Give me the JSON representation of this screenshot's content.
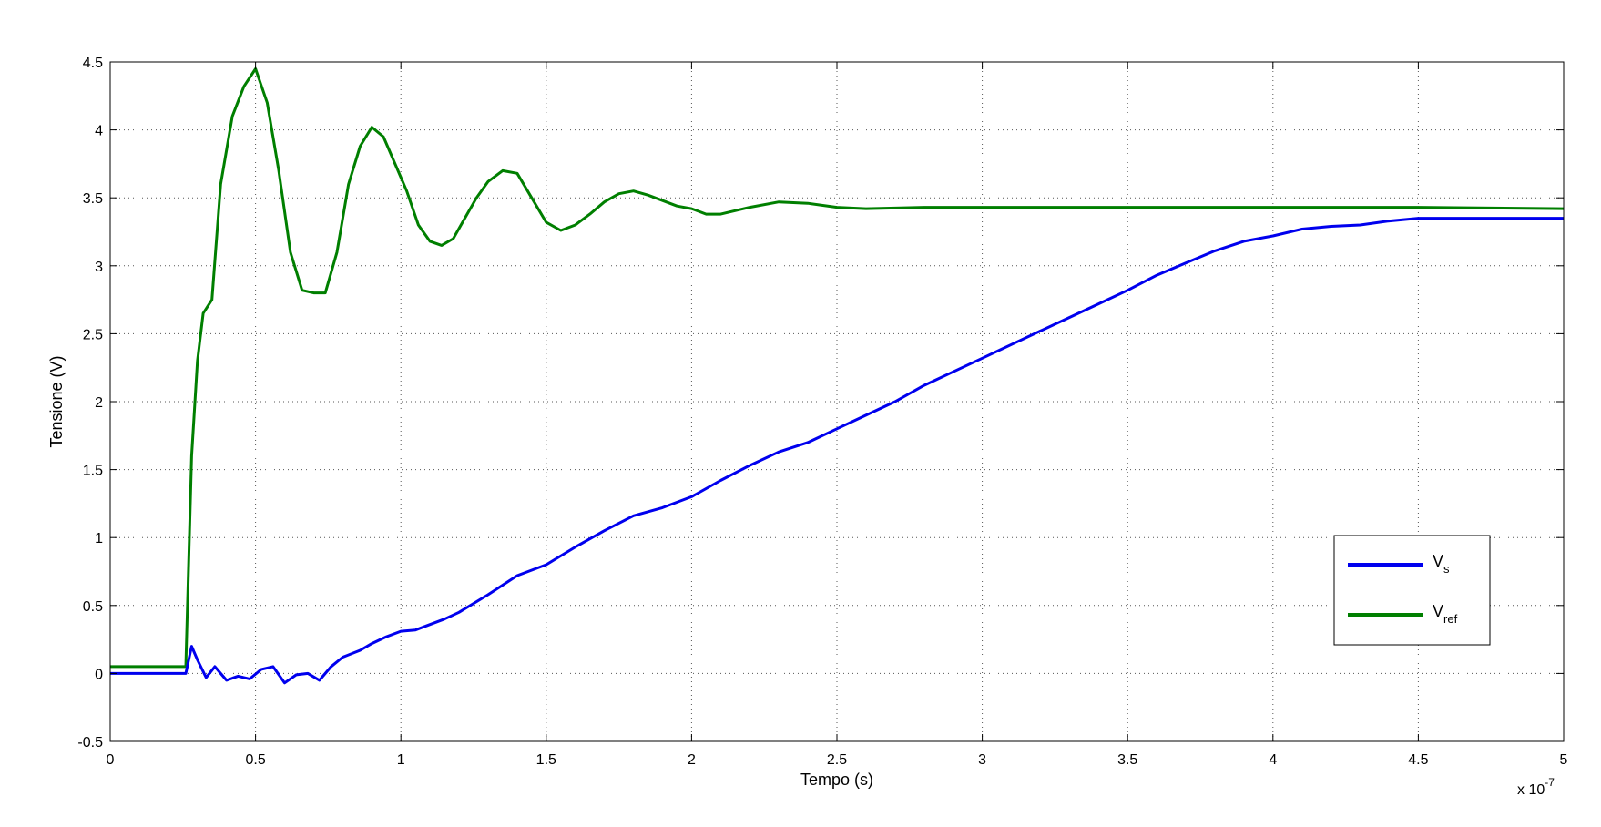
{
  "chart_data": {
    "type": "line",
    "title": "",
    "xlabel": "Tempo (s)",
    "ylabel": "Tensione (V)",
    "x_exponent_label": "x 10",
    "x_exponent_power": "-7",
    "xlim": [
      0,
      5
    ],
    "ylim": [
      -0.5,
      4.5
    ],
    "x_ticks": [
      "0",
      "0.5",
      "1",
      "1.5",
      "2",
      "2.5",
      "3",
      "3.5",
      "4",
      "4.5",
      "5"
    ],
    "y_ticks": [
      "-0.5",
      "0",
      "0.5",
      "1",
      "1.5",
      "2",
      "2.5",
      "3",
      "3.5",
      "4",
      "4.5"
    ],
    "grid": true,
    "legend_position": "right, lower-middle",
    "series": [
      {
        "name": "V_s",
        "legend_main": "V",
        "legend_sub": "s",
        "color": "#0000ee",
        "x": [
          0,
          0.1,
          0.2,
          0.26,
          0.28,
          0.3,
          0.33,
          0.36,
          0.4,
          0.44,
          0.48,
          0.52,
          0.56,
          0.6,
          0.64,
          0.68,
          0.72,
          0.76,
          0.8,
          0.86,
          0.9,
          0.95,
          1.0,
          1.05,
          1.1,
          1.15,
          1.2,
          1.3,
          1.4,
          1.5,
          1.6,
          1.7,
          1.8,
          1.9,
          2.0,
          2.1,
          2.2,
          2.3,
          2.4,
          2.5,
          2.6,
          2.7,
          2.8,
          2.9,
          3.0,
          3.1,
          3.2,
          3.3,
          3.4,
          3.5,
          3.6,
          3.7,
          3.8,
          3.9,
          4.0,
          4.1,
          4.2,
          4.3,
          4.4,
          4.5,
          4.6,
          4.7,
          4.8,
          4.9,
          5.0
        ],
        "y": [
          0.0,
          0.0,
          0.0,
          0.0,
          0.2,
          0.1,
          -0.03,
          0.05,
          -0.05,
          -0.02,
          -0.04,
          0.03,
          0.05,
          -0.07,
          -0.01,
          0.0,
          -0.05,
          0.05,
          0.12,
          0.17,
          0.22,
          0.27,
          0.31,
          0.32,
          0.36,
          0.4,
          0.45,
          0.58,
          0.72,
          0.8,
          0.93,
          1.05,
          1.16,
          1.22,
          1.3,
          1.42,
          1.53,
          1.63,
          1.7,
          1.8,
          1.9,
          2.0,
          2.12,
          2.22,
          2.32,
          2.42,
          2.52,
          2.62,
          2.72,
          2.82,
          2.93,
          3.02,
          3.11,
          3.18,
          3.22,
          3.27,
          3.29,
          3.3,
          3.33,
          3.35,
          3.35,
          3.35,
          3.35,
          3.35,
          3.35
        ]
      },
      {
        "name": "V_ref",
        "legend_main": "V",
        "legend_sub": "ref",
        "color": "#007f00",
        "x": [
          0,
          0.1,
          0.2,
          0.26,
          0.28,
          0.3,
          0.32,
          0.35,
          0.38,
          0.42,
          0.46,
          0.5,
          0.54,
          0.58,
          0.62,
          0.66,
          0.7,
          0.74,
          0.78,
          0.82,
          0.86,
          0.9,
          0.94,
          0.98,
          1.02,
          1.06,
          1.1,
          1.14,
          1.18,
          1.22,
          1.26,
          1.3,
          1.35,
          1.4,
          1.45,
          1.5,
          1.55,
          1.6,
          1.65,
          1.7,
          1.75,
          1.8,
          1.85,
          1.9,
          1.95,
          2.0,
          2.05,
          2.1,
          2.2,
          2.3,
          2.4,
          2.5,
          2.6,
          2.8,
          3.0,
          3.5,
          4.0,
          4.5,
          5.0
        ],
        "y": [
          0.05,
          0.05,
          0.05,
          0.05,
          1.6,
          2.3,
          2.65,
          2.75,
          3.6,
          4.1,
          4.32,
          4.45,
          4.2,
          3.7,
          3.1,
          2.82,
          2.8,
          2.8,
          3.1,
          3.6,
          3.88,
          4.02,
          3.95,
          3.75,
          3.55,
          3.3,
          3.18,
          3.15,
          3.2,
          3.35,
          3.5,
          3.62,
          3.7,
          3.68,
          3.5,
          3.32,
          3.26,
          3.3,
          3.38,
          3.47,
          3.53,
          3.55,
          3.52,
          3.48,
          3.44,
          3.42,
          3.38,
          3.38,
          3.43,
          3.47,
          3.46,
          3.43,
          3.42,
          3.43,
          3.43,
          3.43,
          3.43,
          3.43,
          3.42
        ]
      }
    ]
  }
}
